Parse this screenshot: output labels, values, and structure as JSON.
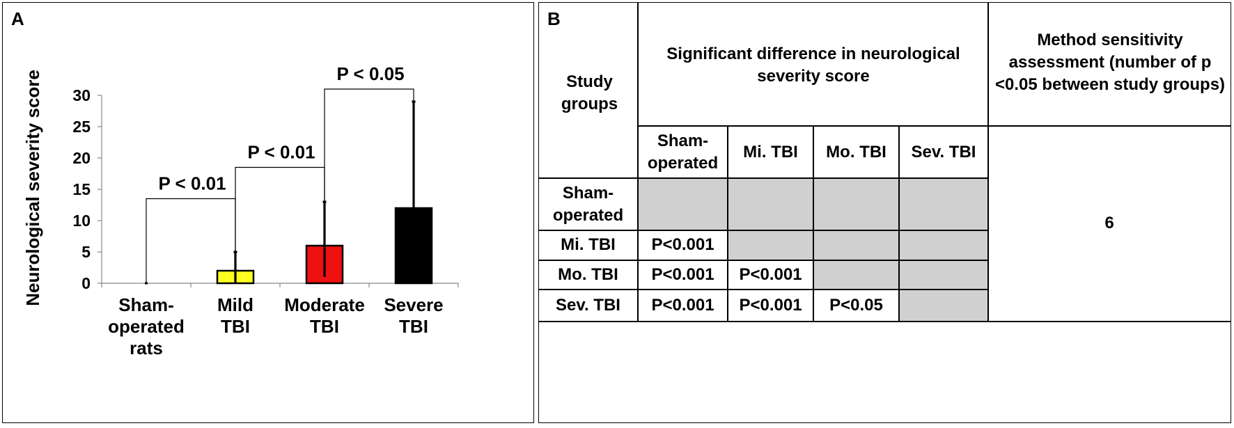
{
  "panel_a": {
    "label": "A"
  },
  "panel_b": {
    "label": "B",
    "header_study_groups": "Study groups",
    "header_significance": "Significant difference in neurological severity score",
    "header_sensitivity": "Method sensitivity assessment (number of p <0.05 between study groups)",
    "columns": [
      "Sham-operated",
      "Mi. TBI",
      "Mo. TBI",
      "Sev. TBI"
    ],
    "rows": [
      {
        "label": "Sham-operated",
        "cells": [
          "",
          "",
          "",
          ""
        ]
      },
      {
        "label": "Mi. TBI",
        "cells": [
          "P<0.001",
          "",
          "",
          ""
        ]
      },
      {
        "label": "Mo. TBI",
        "cells": [
          "P<0.001",
          "P<0.001",
          "",
          ""
        ]
      },
      {
        "label": "Sev. TBI",
        "cells": [
          "P<0.001",
          "P<0.001",
          "P<0.05",
          ""
        ]
      }
    ],
    "sensitivity_value": "6",
    "colors": {
      "gray": "#d0d0d0"
    }
  },
  "chart_data": {
    "type": "bar",
    "title": "",
    "xlabel": "",
    "ylabel": "Neurological severity score",
    "ylim": [
      0,
      30
    ],
    "yticks": [
      0,
      5,
      10,
      15,
      20,
      25,
      30
    ],
    "categories": [
      "Sham-operated rats",
      "Mild TBI",
      "Moderate TBI",
      "Severe TBI"
    ],
    "category_lines": [
      [
        "Sham-",
        "operated",
        "rats"
      ],
      [
        "Mild",
        "TBI"
      ],
      [
        "Moderate",
        "TBI"
      ],
      [
        "Severe",
        "TBI"
      ]
    ],
    "values": [
      0,
      2,
      6,
      12
    ],
    "error_low": [
      0,
      0,
      1,
      0
    ],
    "error_high": [
      0,
      5,
      13,
      29
    ],
    "colors": [
      "#ffffff",
      "#ffff22",
      "#ee1111",
      "#000000"
    ],
    "grid": false,
    "brackets": [
      {
        "from": 0,
        "to": 1,
        "y": 13.5,
        "label": "P < 0.01"
      },
      {
        "from": 1,
        "to": 2,
        "y": 18.5,
        "label": "P < 0.01"
      },
      {
        "from": 2,
        "to": 3,
        "y": 31,
        "label": "P < 0.05"
      }
    ]
  }
}
